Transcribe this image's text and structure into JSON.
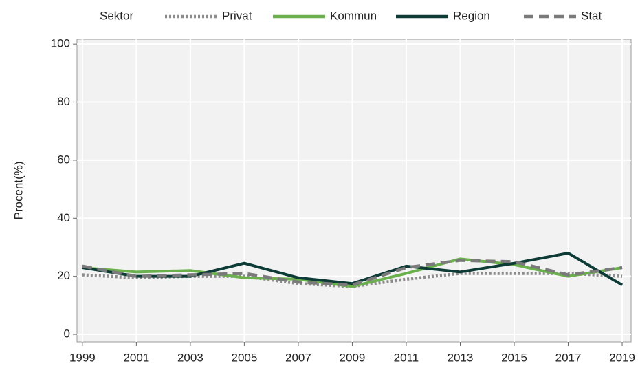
{
  "chart_data": {
    "type": "line",
    "y_label": "Procent(%)",
    "legend_title": "Sektor",
    "legend_position": "top",
    "x": [
      1999,
      2001,
      2003,
      2005,
      2007,
      2009,
      2011,
      2013,
      2015,
      2017,
      2019
    ],
    "series": [
      {
        "name": "Privat",
        "color": "#8c8c8c",
        "style": "dotted",
        "values": [
          20.5,
          19.5,
          20,
          20,
          17.5,
          16.5,
          19,
          21,
          21,
          21,
          20
        ]
      },
      {
        "name": "Kommun",
        "color": "#6ab04c",
        "style": "solid",
        "values": [
          23,
          21.5,
          22,
          19.5,
          19,
          16.5,
          21,
          26,
          24,
          20,
          23
        ]
      },
      {
        "name": "Region",
        "color": "#0d3b36",
        "style": "solid",
        "values": [
          23,
          20,
          20,
          24.5,
          19.5,
          17.5,
          23.5,
          21.5,
          24.5,
          28,
          17
        ]
      },
      {
        "name": "Stat",
        "color": "#7a7a7a",
        "style": "dashed",
        "values": [
          23.5,
          20,
          20.5,
          21,
          18,
          17,
          23,
          25.5,
          25,
          20.5,
          23
        ]
      }
    ],
    "xlim": [
      1998.8,
      2019.33
    ],
    "ylim": [
      -2.6,
      101.7
    ],
    "xticks": [
      1999,
      2001,
      2003,
      2005,
      2007,
      2009,
      2011,
      2013,
      2015,
      2017,
      2019
    ],
    "yticks": [
      0,
      20,
      40,
      60,
      80,
      100
    ],
    "grid": true,
    "background": "#f2f2f2"
  }
}
